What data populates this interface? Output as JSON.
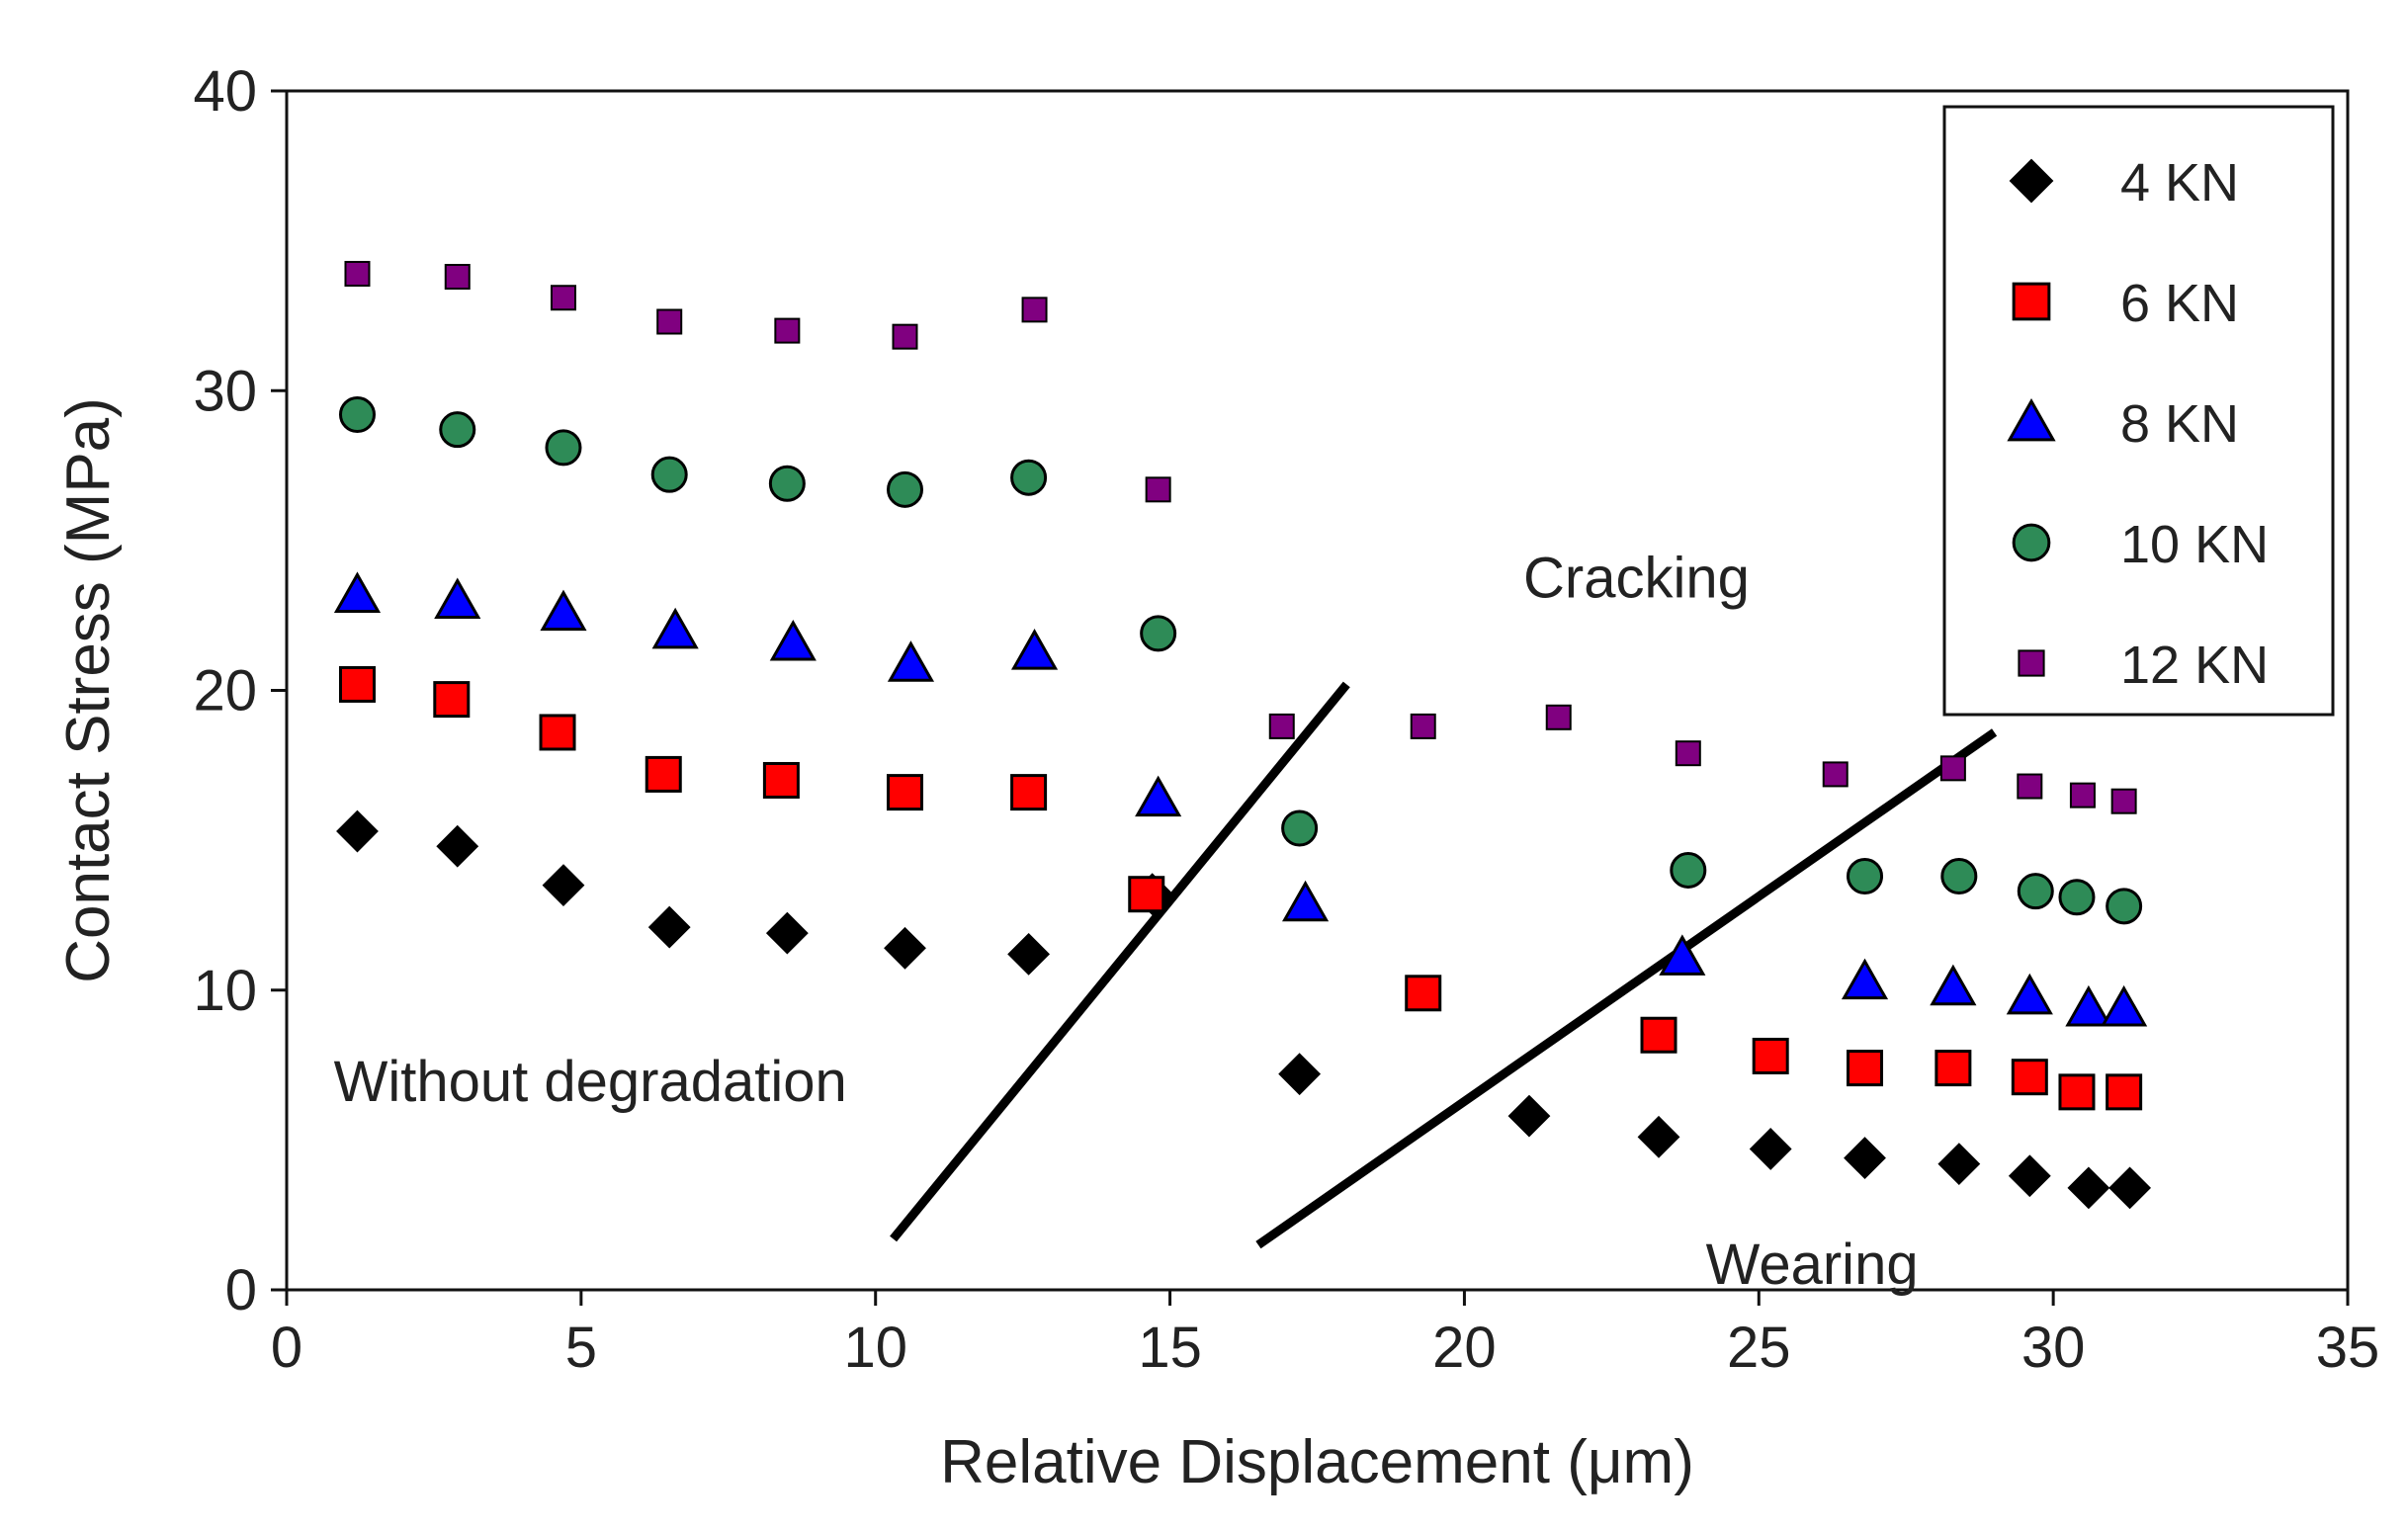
{
  "chart_data": {
    "type": "scatter",
    "title": "",
    "xlabel": "Relative Displacement (μm)",
    "ylabel": "Contact Stress (MPa)",
    "xlim": [
      0,
      35
    ],
    "ylim": [
      0,
      40
    ],
    "xticks": [
      0,
      5,
      10,
      15,
      20,
      25,
      30,
      35
    ],
    "yticks": [
      0,
      10,
      20,
      30,
      40
    ],
    "grid": false,
    "legend_position": "top-right",
    "series": [
      {
        "name": "4 KN",
        "marker": "diamond",
        "color": "#000000",
        "x": [
          1.2,
          2.9,
          4.7,
          6.5,
          8.5,
          10.5,
          12.6,
          14.7,
          17.2,
          21.1,
          23.3,
          25.2,
          26.8,
          28.4,
          29.6,
          30.6,
          31.3
        ],
        "y": [
          15.3,
          14.8,
          13.5,
          12.1,
          11.9,
          11.4,
          11.2,
          13.2,
          7.2,
          5.8,
          5.1,
          4.7,
          4.4,
          4.2,
          3.8,
          3.4,
          3.4
        ]
      },
      {
        "name": "6 KN",
        "marker": "square",
        "color": "#ff0000",
        "x": [
          1.2,
          2.8,
          4.6,
          6.4,
          8.4,
          10.5,
          12.6,
          14.6,
          19.3,
          23.3,
          25.2,
          26.8,
          28.3,
          29.6,
          30.4,
          31.2
        ],
        "y": [
          20.2,
          19.7,
          18.6,
          17.2,
          17.0,
          16.6,
          16.6,
          13.2,
          9.9,
          8.5,
          7.8,
          7.4,
          7.4,
          7.1,
          6.6,
          6.6
        ]
      },
      {
        "name": "8 KN",
        "marker": "triangle",
        "color": "#0000ff",
        "x": [
          1.2,
          2.9,
          4.7,
          6.6,
          8.6,
          10.6,
          12.7,
          14.8,
          17.3,
          23.7,
          26.8,
          28.3,
          29.6,
          30.6,
          31.2
        ],
        "y": [
          23.2,
          23.0,
          22.6,
          22.0,
          21.6,
          20.9,
          21.3,
          16.4,
          12.9,
          11.1,
          10.3,
          10.1,
          9.8,
          9.4,
          9.4
        ]
      },
      {
        "name": "10 KN",
        "marker": "circle",
        "color": "#2e8b57",
        "x": [
          1.2,
          2.9,
          4.7,
          6.5,
          8.5,
          10.5,
          12.6,
          14.8,
          17.2,
          23.8,
          26.8,
          28.4,
          29.7,
          30.4,
          31.2
        ],
        "y": [
          29.2,
          28.7,
          28.1,
          27.2,
          26.9,
          26.7,
          27.1,
          21.9,
          15.4,
          14.0,
          13.8,
          13.8,
          13.3,
          13.1,
          12.8
        ]
      },
      {
        "name": "12 KN",
        "marker": "small-square",
        "color": "#800080",
        "x": [
          1.2,
          2.9,
          4.7,
          6.5,
          8.5,
          10.5,
          12.7,
          14.8,
          16.9,
          19.3,
          21.6,
          23.8,
          26.3,
          28.3,
          29.6,
          30.5,
          31.2
        ],
        "y": [
          33.9,
          33.8,
          33.1,
          32.3,
          32.0,
          31.8,
          32.7,
          26.7,
          18.8,
          18.8,
          19.1,
          17.9,
          17.2,
          17.4,
          16.8,
          16.5,
          16.3
        ]
      }
    ],
    "lines": [
      {
        "x": [
          10.3,
          18.0
        ],
        "y": [
          1.7,
          20.2
        ]
      },
      {
        "x": [
          16.5,
          29.0
        ],
        "y": [
          1.5,
          18.6
        ]
      }
    ],
    "annotations": [
      {
        "text": "Without degradation",
        "x": 0.8,
        "y": 6.3
      },
      {
        "text": "Cracking",
        "x": 21.0,
        "y": 23.1
      },
      {
        "text": "Wearing",
        "x": 24.1,
        "y": 0.2
      }
    ]
  }
}
